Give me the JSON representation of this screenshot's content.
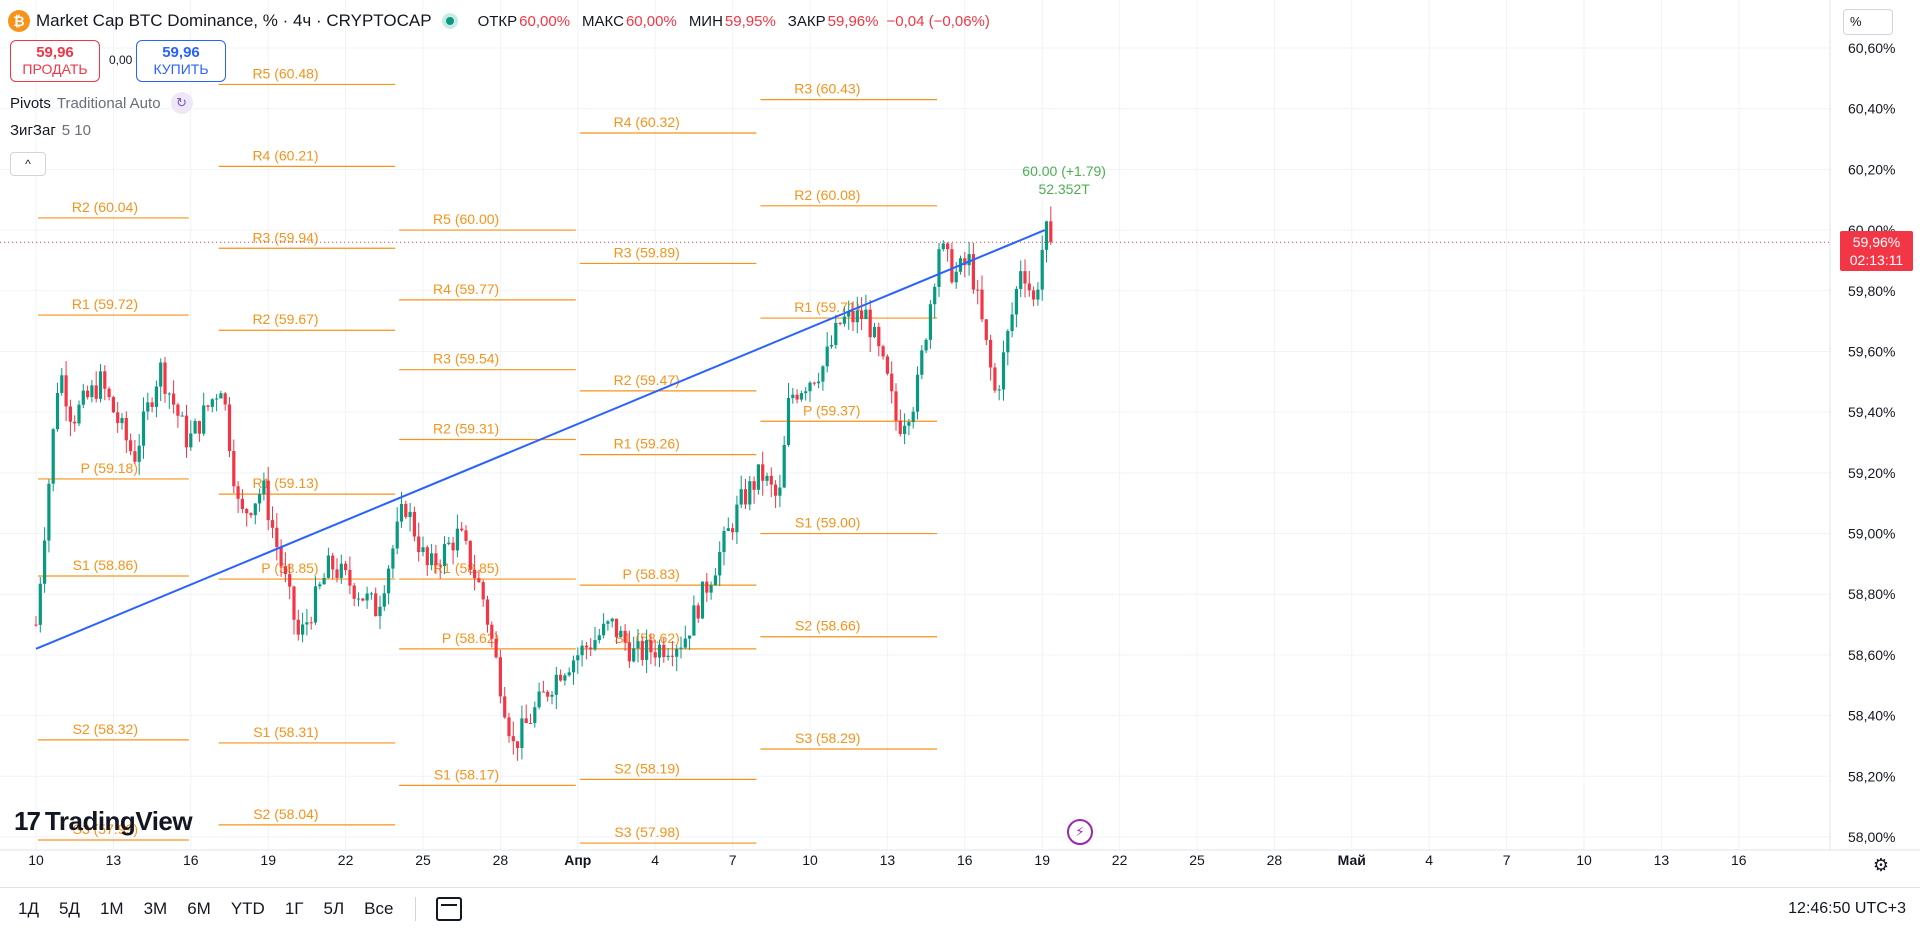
{
  "header": {
    "symbol_icon": "bitcoin-icon",
    "symbol_icon_glyph": "₿",
    "title": "Market Cap BTC Dominance, % · 4ч · CRYPTOCAP",
    "ohlc": [
      {
        "label": "ОТКР",
        "value": "60,00%"
      },
      {
        "label": "МАКС",
        "value": "60,00%"
      },
      {
        "label": "МИН",
        "value": "59,95%"
      },
      {
        "label": "ЗАКР",
        "value": "59,96%"
      },
      {
        "label": "",
        "value": "−0,04 (−0,06%)"
      }
    ]
  },
  "trade": {
    "sell_price": "59,96",
    "sell_label": "ПРОДАТЬ",
    "spread": "0,00",
    "buy_price": "59,96",
    "buy_label": "КУПИТЬ"
  },
  "indicators": {
    "pivots_name": "Pivots",
    "pivots_params": "Traditional Auto",
    "zigzag_name": "ЗигЗаг",
    "zigzag_params": "5 10",
    "collapse_glyph": "^"
  },
  "logo_text": "TradingView",
  "logo_mark": "17",
  "unit": "%",
  "price_tag": {
    "price": "59,96%",
    "countdown": "02:13:11"
  },
  "bottom_bar": {
    "ranges": [
      "1Д",
      "5Д",
      "1М",
      "3М",
      "6М",
      "YTD",
      "1Г",
      "5Л",
      "Все"
    ],
    "clock": "12:46:50 UTC+3"
  },
  "colors": {
    "up": "#089981",
    "down": "#f23645",
    "pivot": "#f7931a",
    "trend": "#2962ff",
    "accent": "#2962ff"
  },
  "chart_data": {
    "type": "candlestick",
    "title": "",
    "ylim": [
      57.96,
      60.72
    ],
    "y_ticks": [
      {
        "value": 60.6,
        "label": "60,60%"
      },
      {
        "value": 60.4,
        "label": "60,40%"
      },
      {
        "value": 60.2,
        "label": "60,20%"
      },
      {
        "value": 60.0,
        "label": "60,00%"
      },
      {
        "value": 59.8,
        "label": "59,80%"
      },
      {
        "value": 59.6,
        "label": "59,60%"
      },
      {
        "value": 59.4,
        "label": "59,40%"
      },
      {
        "value": 59.2,
        "label": "59,20%"
      },
      {
        "value": 59.0,
        "label": "59,00%"
      },
      {
        "value": 58.8,
        "label": "58,80%"
      },
      {
        "value": 58.6,
        "label": "58,60%"
      },
      {
        "value": 58.4,
        "label": "58,40%"
      },
      {
        "value": 58.2,
        "label": "58,20%"
      },
      {
        "value": 58.0,
        "label": "58,00%"
      }
    ],
    "x_ticks": [
      {
        "day": 0,
        "label": "10"
      },
      {
        "day": 3,
        "label": "13"
      },
      {
        "day": 6,
        "label": "16"
      },
      {
        "day": 9,
        "label": "19"
      },
      {
        "day": 12,
        "label": "22"
      },
      {
        "day": 15,
        "label": "25"
      },
      {
        "day": 18,
        "label": "28"
      },
      {
        "day": 21,
        "label": "Апр"
      },
      {
        "day": 24,
        "label": "4"
      },
      {
        "day": 27,
        "label": "7"
      },
      {
        "day": 30,
        "label": "10"
      },
      {
        "day": 33,
        "label": "13"
      },
      {
        "day": 36,
        "label": "16"
      },
      {
        "day": 39,
        "label": "19"
      },
      {
        "day": 42,
        "label": "22"
      },
      {
        "day": 45,
        "label": "25"
      },
      {
        "day": 48,
        "label": "28"
      },
      {
        "day": 51,
        "label": "Май"
      },
      {
        "day": 54,
        "label": "4"
      },
      {
        "day": 57,
        "label": "7"
      },
      {
        "day": 60,
        "label": "10"
      },
      {
        "day": 63,
        "label": "13"
      },
      {
        "day": 66,
        "label": "16"
      }
    ],
    "path_points": [
      [
        0,
        58.7
      ],
      [
        0.9,
        59.55
      ],
      [
        1.4,
        59.38
      ],
      [
        2.5,
        59.5
      ],
      [
        3.8,
        59.25
      ],
      [
        4.8,
        59.55
      ],
      [
        5.9,
        59.3
      ],
      [
        7.2,
        59.5
      ],
      [
        7.9,
        59.05
      ],
      [
        8.8,
        59.15
      ],
      [
        10.2,
        58.65
      ],
      [
        11.4,
        58.9
      ],
      [
        13.2,
        58.75
      ],
      [
        14.3,
        59.1
      ],
      [
        15.2,
        58.88
      ],
      [
        16.4,
        59.0
      ],
      [
        17.3,
        58.8
      ],
      [
        18.5,
        58.3
      ],
      [
        20.3,
        58.55
      ],
      [
        22.3,
        58.7
      ],
      [
        23.2,
        58.6
      ],
      [
        25.1,
        58.65
      ],
      [
        26.1,
        58.85
      ],
      [
        27.3,
        59.1
      ],
      [
        28.1,
        59.2
      ],
      [
        28.8,
        59.1
      ],
      [
        29.2,
        59.45
      ],
      [
        30.5,
        59.55
      ],
      [
        31.2,
        59.7
      ],
      [
        32.2,
        59.72
      ],
      [
        33.0,
        59.5
      ],
      [
        33.4,
        59.35
      ],
      [
        34.1,
        59.45
      ],
      [
        35.0,
        59.95
      ],
      [
        35.6,
        59.85
      ],
      [
        36.2,
        59.9
      ],
      [
        37.2,
        59.45
      ],
      [
        37.9,
        59.75
      ],
      [
        38.2,
        59.9
      ],
      [
        38.7,
        59.75
      ],
      [
        39.1,
        60.0
      ],
      [
        39.3,
        59.97
      ]
    ],
    "last": {
      "open": 60.0,
      "high": 60.0,
      "low": 59.95,
      "close": 59.96,
      "change": "−0,04 (−0,06%)"
    },
    "annotation": {
      "day": 38.3,
      "price": 60.0,
      "text1": "60.00 (+1.79)",
      "text2": "52.352T"
    },
    "trendline": [
      [
        0,
        58.62
      ],
      [
        39.1,
        60.0
      ]
    ],
    "current_price": 59.96,
    "pivot_levels": [
      {
        "d0": 0,
        "d1": 6,
        "value": 60.04,
        "label": "R2 (60.04)"
      },
      {
        "d0": 0,
        "d1": 6,
        "value": 59.72,
        "label": "R1 (59.72)"
      },
      {
        "d0": 0,
        "d1": 6,
        "value": 59.18,
        "label": "P (59.18)"
      },
      {
        "d0": 0,
        "d1": 6,
        "value": 58.86,
        "label": "S1 (58.86)"
      },
      {
        "d0": 0,
        "d1": 6,
        "value": 58.32,
        "label": "S2 (58.32)"
      },
      {
        "d0": 0,
        "d1": 6,
        "value": 57.99,
        "label": "S3 (57.99)"
      },
      {
        "d0": 7,
        "d1": 14,
        "value": 60.48,
        "label": "R5 (60.48)"
      },
      {
        "d0": 7,
        "d1": 14,
        "value": 60.21,
        "label": "R4 (60.21)"
      },
      {
        "d0": 7,
        "d1": 14,
        "value": 59.94,
        "label": "R3 (59.94)"
      },
      {
        "d0": 7,
        "d1": 14,
        "value": 59.67,
        "label": "R2 (59.67)"
      },
      {
        "d0": 7,
        "d1": 14,
        "value": 59.13,
        "label": "R1 (59.13)"
      },
      {
        "d0": 7,
        "d1": 14,
        "value": 58.85,
        "label": "P (58.85)"
      },
      {
        "d0": 7,
        "d1": 14,
        "value": 58.31,
        "label": "S1 (58.31)"
      },
      {
        "d0": 7,
        "d1": 14,
        "value": 58.04,
        "label": "S2 (58.04)"
      },
      {
        "d0": 14,
        "d1": 21,
        "value": 60.0,
        "label": "R5 (60.00)"
      },
      {
        "d0": 14,
        "d1": 21,
        "value": 59.77,
        "label": "R4 (59.77)"
      },
      {
        "d0": 14,
        "d1": 21,
        "value": 59.54,
        "label": "R3 (59.54)"
      },
      {
        "d0": 14,
        "d1": 21,
        "value": 59.31,
        "label": "R2 (59.31)"
      },
      {
        "d0": 14,
        "d1": 21,
        "value": 58.85,
        "label": "R1 (58.85)"
      },
      {
        "d0": 14,
        "d1": 21,
        "value": 58.62,
        "label": "P (58.62)"
      },
      {
        "d0": 14,
        "d1": 21,
        "value": 58.17,
        "label": "S1 (58.17)"
      },
      {
        "d0": 21,
        "d1": 28,
        "value": 60.32,
        "label": "R4 (60.32)"
      },
      {
        "d0": 21,
        "d1": 28,
        "value": 59.89,
        "label": "R3 (59.89)"
      },
      {
        "d0": 21,
        "d1": 28,
        "value": 59.47,
        "label": "R2 (59.47)"
      },
      {
        "d0": 21,
        "d1": 28,
        "value": 59.26,
        "label": "R1 (59.26)"
      },
      {
        "d0": 21,
        "d1": 28,
        "value": 58.83,
        "label": "P (58.83)"
      },
      {
        "d0": 21,
        "d1": 28,
        "value": 58.62,
        "label": "S1 (58.62)"
      },
      {
        "d0": 21,
        "d1": 28,
        "value": 58.19,
        "label": "S2 (58.19)"
      },
      {
        "d0": 21,
        "d1": 28,
        "value": 57.98,
        "label": "S3 (57.98)"
      },
      {
        "d0": 28,
        "d1": 35,
        "value": 60.43,
        "label": "R3 (60.43)"
      },
      {
        "d0": 28,
        "d1": 35,
        "value": 60.08,
        "label": "R2 (60.08)"
      },
      {
        "d0": 28,
        "d1": 35,
        "value": 59.71,
        "label": "R1 (59.71)"
      },
      {
        "d0": 28,
        "d1": 35,
        "value": 59.37,
        "label": "P (59.37)"
      },
      {
        "d0": 28,
        "d1": 35,
        "value": 59.0,
        "label": "S1 (59.00)"
      },
      {
        "d0": 28,
        "d1": 35,
        "value": 58.66,
        "label": "S2 (58.66)"
      },
      {
        "d0": 28,
        "d1": 35,
        "value": 58.29,
        "label": "S3 (58.29)"
      }
    ]
  }
}
